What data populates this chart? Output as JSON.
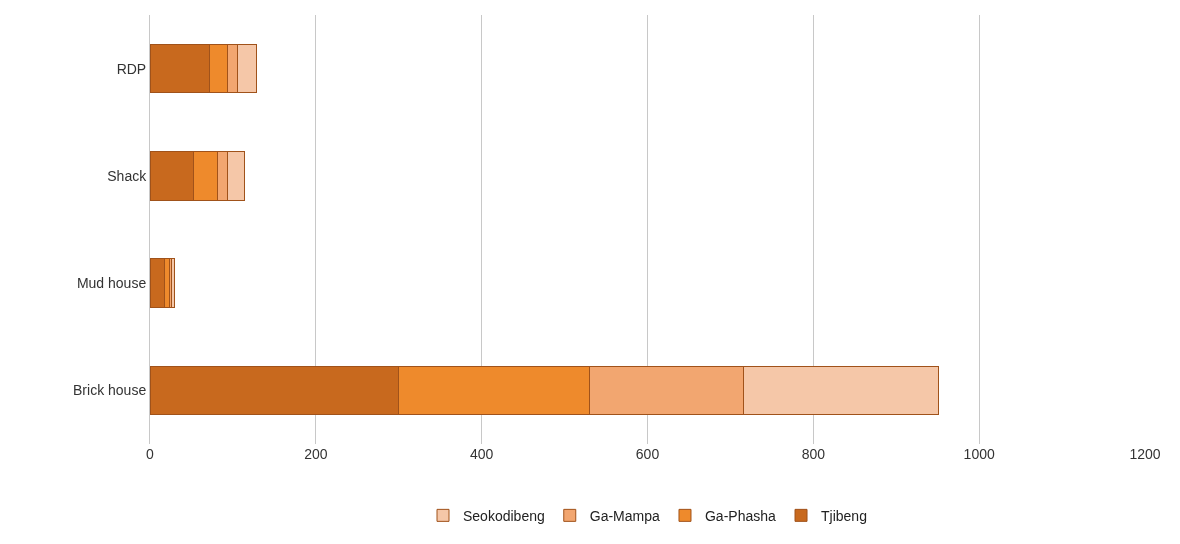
{
  "chart_data": {
    "type": "bar",
    "orientation": "horizontal",
    "stacked": true,
    "categories": [
      "RDP",
      "Shack",
      "Mud house",
      "Brick house"
    ],
    "series": [
      {
        "name": "Tjibeng",
        "color": "#c8691e",
        "values": [
          72,
          53,
          18,
          300
        ]
      },
      {
        "name": "Ga-Phasha",
        "color": "#ee8a2c",
        "values": [
          21,
          29,
          6,
          230
        ]
      },
      {
        "name": "Ga-Mampa",
        "color": "#f2a670",
        "values": [
          12,
          11,
          2,
          186
        ]
      },
      {
        "name": "Seokodibeng",
        "color": "#f5c7a8",
        "values": [
          24,
          21,
          4,
          235
        ]
      }
    ],
    "xlim": [
      0,
      1200
    ],
    "xticks": [
      0,
      200,
      400,
      600,
      800,
      1000,
      1200
    ],
    "grid": "x",
    "legend": "bottom"
  }
}
